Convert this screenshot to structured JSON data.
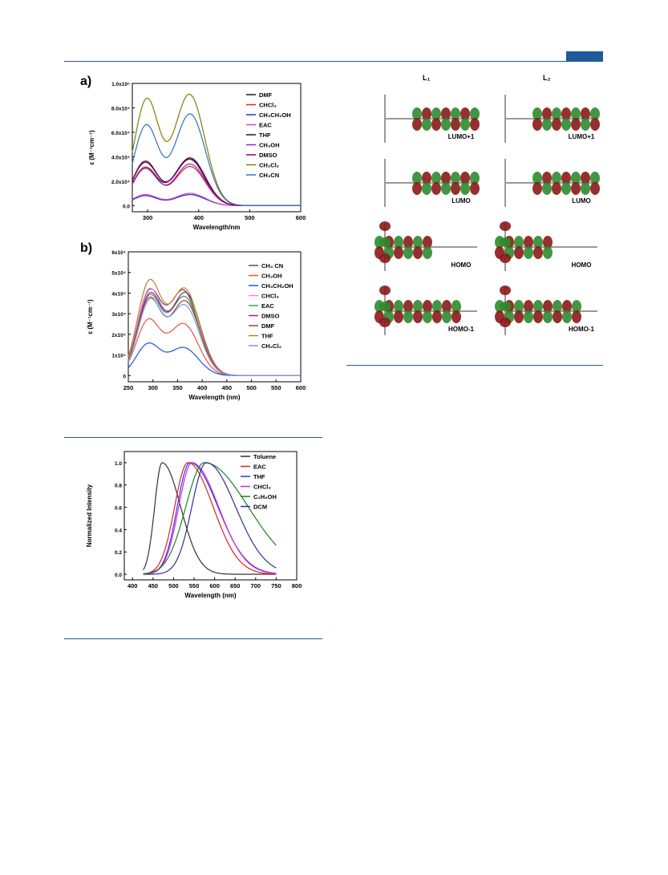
{
  "colors": {
    "rule": "#1f5a99",
    "lumo_pos": "#2e8b2e",
    "lumo_neg": "#8b1a1a"
  },
  "panel_a": {
    "label": "a)"
  },
  "panel_b": {
    "label": "b)"
  },
  "orbitals": {
    "columns": [
      "L₁",
      "L₂"
    ],
    "rows": [
      "LUMO+1",
      "LUMO",
      "HOMO",
      "HOMO-1"
    ]
  },
  "chart_data": [
    {
      "id": "a",
      "type": "line",
      "xlabel": "Wavelength/nm",
      "ylabel": "ε (M⁻¹cm⁻¹)",
      "xlim": [
        270,
        600
      ],
      "ylim": [
        -5000,
        100000
      ],
      "xticks": [
        300,
        400,
        500,
        600
      ],
      "yticks": [
        0,
        20000,
        40000,
        60000,
        80000,
        100000
      ],
      "ytick_labels": [
        "0.0",
        "2.0x10⁴",
        "4.0x10⁴",
        "6.0x10⁴",
        "8.0x10⁴",
        "1.0x10⁵"
      ],
      "legend_position": "top-right",
      "series": [
        {
          "name": "DMF",
          "color": "#1a1a1a",
          "peaks": [
            [
              295,
              31000
            ],
            [
              382,
              38000
            ]
          ],
          "min": [
            330,
            16000
          ]
        },
        {
          "name": "CHCl₃",
          "color": "#e02020",
          "peaks": [
            [
              295,
              31000
            ],
            [
              383,
              32000
            ]
          ],
          "min": [
            330,
            15000
          ]
        },
        {
          "name": "CH₃CH₂OH",
          "color": "#2030d0",
          "peaks": [
            [
              295,
              8000
            ],
            [
              383,
              9000
            ]
          ],
          "min": [
            330,
            4500
          ]
        },
        {
          "name": "EAC",
          "color": "#e040c0",
          "peaks": [
            [
              295,
              9000
            ],
            [
              383,
              10000
            ]
          ],
          "min": [
            330,
            5000
          ]
        },
        {
          "name": "THF",
          "color": "#1a1a1a",
          "peaks": [
            [
              295,
              35000
            ],
            [
              383,
              39000
            ]
          ],
          "min": [
            330,
            17000
          ]
        },
        {
          "name": "CH₃OH",
          "color": "#9020d0",
          "peaks": [
            [
              295,
              30000
            ],
            [
              383,
              34000
            ]
          ],
          "min": [
            330,
            15000
          ]
        },
        {
          "name": "DMSO",
          "color": "#8b006b",
          "peaks": [
            [
              295,
              36000
            ],
            [
              383,
              38000
            ]
          ],
          "min": [
            330,
            17000
          ]
        },
        {
          "name": "CH₂Cl₂",
          "color": "#808000",
          "peaks": [
            [
              298,
              86000
            ],
            [
              382,
              91000
            ]
          ],
          "min": [
            333,
            41000
          ]
        },
        {
          "name": "CH₃CN",
          "color": "#3070c0",
          "peaks": [
            [
              297,
              65000
            ],
            [
              383,
              75000
            ]
          ],
          "min": [
            333,
            34000
          ]
        }
      ]
    },
    {
      "id": "b",
      "type": "line",
      "xlabel": "Wavelength (nm)",
      "ylabel": "ε (M⁻¹cm⁻¹)",
      "xlim": [
        250,
        600
      ],
      "ylim": [
        -3000,
        60000
      ],
      "xticks": [
        250,
        300,
        350,
        400,
        450,
        500,
        550,
        600
      ],
      "yticks": [
        0,
        10000,
        20000,
        30000,
        40000,
        50000,
        60000
      ],
      "ytick_labels": [
        "0",
        "1x10⁴",
        "2x10⁴",
        "3x10⁴",
        "4x10⁴",
        "5x10⁴",
        "6x10⁴"
      ],
      "legend_position": "right",
      "series": [
        {
          "name": "CH₃ CN",
          "color": "#555555",
          "peaks": [
            [
              292,
              39000
            ],
            [
              362,
              41000
            ]
          ],
          "min": [
            328,
            22000
          ]
        },
        {
          "name": "CH₃OH",
          "color": "#f05040",
          "peaks": [
            [
              290,
              26000
            ],
            [
              362,
              25000
            ]
          ],
          "min": [
            326,
            14000
          ]
        },
        {
          "name": "CH₃CH₂OH",
          "color": "#2050e0",
          "peaks": [
            [
              290,
              15000
            ],
            [
              362,
              13500
            ]
          ],
          "min": [
            326,
            8000
          ]
        },
        {
          "name": "CHCl₃",
          "color": "#f080f0",
          "peaks": [
            [
              292,
              40000
            ],
            [
              364,
              38000
            ]
          ],
          "min": [
            328,
            23000
          ]
        },
        {
          "name": "EAC",
          "color": "#30b040",
          "peaks": [
            [
              292,
              37000
            ],
            [
              364,
              38000
            ]
          ],
          "min": [
            328,
            21000
          ]
        },
        {
          "name": "DMSO",
          "color": "#9a2090",
          "peaks": [
            [
              293,
              38000
            ],
            [
              366,
              40000
            ]
          ],
          "min": [
            330,
            22000
          ]
        },
        {
          "name": "DMF",
          "color": "#a04040",
          "peaks": [
            [
              292,
              36000
            ],
            [
              365,
              36000
            ]
          ],
          "min": [
            329,
            21000
          ]
        },
        {
          "name": "THF",
          "color": "#c08020",
          "peaks": [
            [
              292,
              44000
            ],
            [
              364,
              42000
            ]
          ],
          "min": [
            329,
            24000
          ]
        },
        {
          "name": "CH₂Cl₂",
          "color": "#70a0e0",
          "peaks": [
            [
              293,
              35000
            ],
            [
              364,
              34000
            ]
          ],
          "min": [
            329,
            20000
          ]
        }
      ]
    },
    {
      "id": "c",
      "type": "line",
      "xlabel": "Wavelength (nm)",
      "ylabel": "Normalized Intensity",
      "xlim": [
        380,
        800
      ],
      "ylim": [
        -0.05,
        1.1
      ],
      "xticks": [
        400,
        450,
        500,
        550,
        600,
        650,
        700,
        750,
        800
      ],
      "yticks": [
        0.0,
        0.2,
        0.4,
        0.6,
        0.8,
        1.0
      ],
      "ytick_labels": [
        "0.0",
        "0.2",
        "0.4",
        "0.6",
        "0.8",
        "1.0"
      ],
      "legend_position": "top-right",
      "series": [
        {
          "name": "Toluene",
          "color": "#333333",
          "peak": 472,
          "w_left": 28,
          "w_right": 70,
          "start": 425,
          "end": 750,
          "tail": 0.0
        },
        {
          "name": "EAC",
          "color": "#e02020",
          "peak": 535,
          "w_left": 50,
          "w_right": 95,
          "start": 425,
          "end": 750,
          "tail": 0.0
        },
        {
          "name": "THF",
          "color": "#2040e0",
          "peak": 540,
          "w_left": 48,
          "w_right": 105,
          "start": 425,
          "end": 750,
          "tail": 0.0
        },
        {
          "name": "CHCl₃",
          "color": "#e020e0",
          "peak": 545,
          "w_left": 50,
          "w_right": 100,
          "start": 425,
          "end": 750,
          "tail": 0.0
        },
        {
          "name": "C₂H₅OH",
          "color": "#208020",
          "peak": 575,
          "w_left": 70,
          "w_right": 165,
          "start": 425,
          "end": 750,
          "tail": 0.0
        },
        {
          "name": "DCM",
          "color": "#303090",
          "peak": 580,
          "w_left": 55,
          "w_right": 110,
          "start": 425,
          "end": 750,
          "tail": 0.0
        }
      ]
    }
  ]
}
